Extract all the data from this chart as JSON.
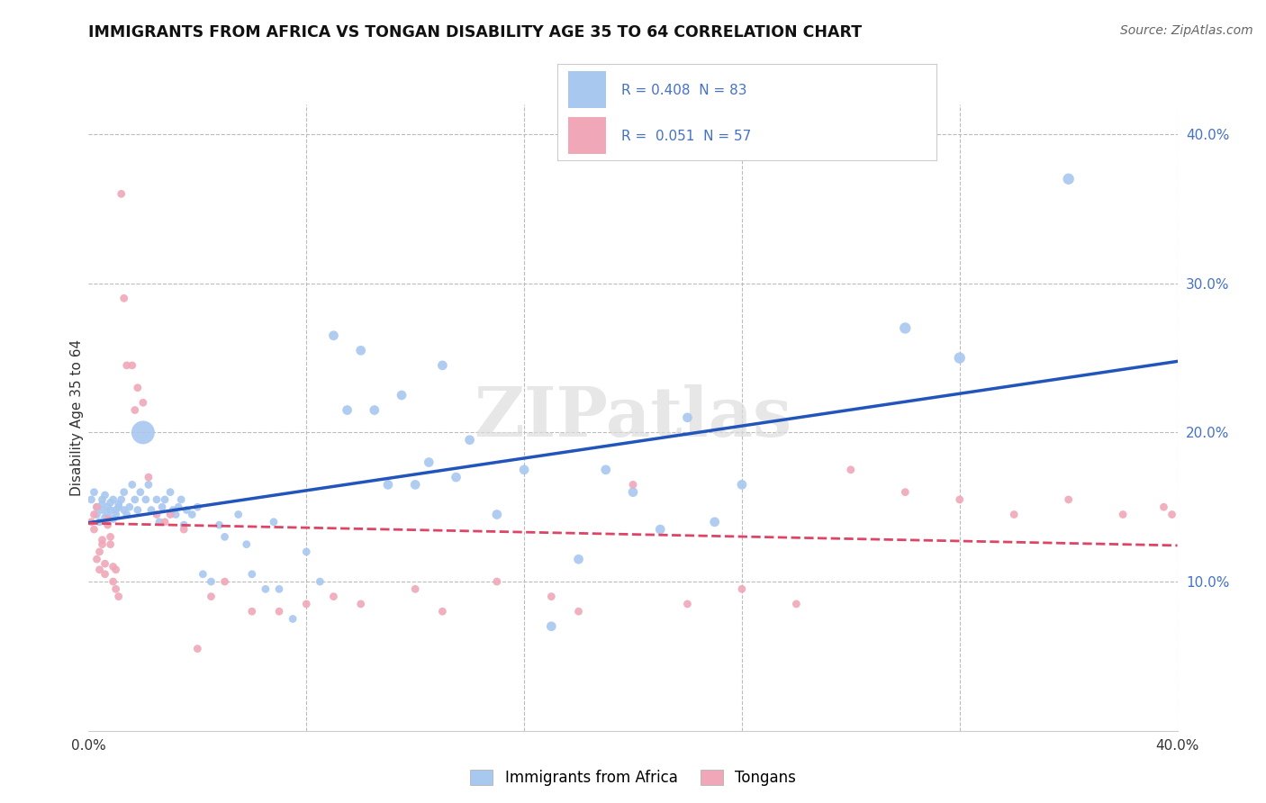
{
  "title": "IMMIGRANTS FROM AFRICA VS TONGAN DISABILITY AGE 35 TO 64 CORRELATION CHART",
  "source": "Source: ZipAtlas.com",
  "ylabel": "Disability Age 35 to 64",
  "xlim": [
    0.0,
    0.4
  ],
  "ylim": [
    0.0,
    0.42
  ],
  "legend1_R": "0.408",
  "legend1_N": "83",
  "legend2_R": "0.051",
  "legend2_N": "57",
  "color_africa": "#a8c8f0",
  "color_tonga": "#f0a8b8",
  "line_africa": "#2255bb",
  "line_tonga": "#dd4466",
  "watermark": "ZIPatlas",
  "africa_x": [
    0.001,
    0.002,
    0.003,
    0.003,
    0.004,
    0.005,
    0.005,
    0.005,
    0.006,
    0.006,
    0.007,
    0.007,
    0.008,
    0.008,
    0.009,
    0.009,
    0.01,
    0.01,
    0.011,
    0.011,
    0.012,
    0.013,
    0.013,
    0.014,
    0.015,
    0.016,
    0.017,
    0.018,
    0.019,
    0.02,
    0.021,
    0.022,
    0.023,
    0.025,
    0.026,
    0.027,
    0.028,
    0.03,
    0.031,
    0.032,
    0.033,
    0.034,
    0.035,
    0.036,
    0.038,
    0.04,
    0.042,
    0.045,
    0.048,
    0.05,
    0.055,
    0.058,
    0.06,
    0.065,
    0.068,
    0.07,
    0.075,
    0.08,
    0.085,
    0.09,
    0.095,
    0.1,
    0.105,
    0.11,
    0.115,
    0.12,
    0.125,
    0.13,
    0.135,
    0.14,
    0.15,
    0.16,
    0.17,
    0.18,
    0.19,
    0.2,
    0.21,
    0.22,
    0.23,
    0.24,
    0.3,
    0.32,
    0.36
  ],
  "africa_y": [
    0.155,
    0.16,
    0.145,
    0.15,
    0.14,
    0.155,
    0.148,
    0.152,
    0.143,
    0.158,
    0.145,
    0.15,
    0.148,
    0.153,
    0.142,
    0.155,
    0.148,
    0.145,
    0.15,
    0.152,
    0.155,
    0.148,
    0.16,
    0.145,
    0.15,
    0.165,
    0.155,
    0.148,
    0.16,
    0.2,
    0.155,
    0.165,
    0.148,
    0.155,
    0.14,
    0.15,
    0.155,
    0.16,
    0.148,
    0.145,
    0.15,
    0.155,
    0.138,
    0.148,
    0.145,
    0.15,
    0.105,
    0.1,
    0.138,
    0.13,
    0.145,
    0.125,
    0.105,
    0.095,
    0.14,
    0.095,
    0.075,
    0.12,
    0.1,
    0.265,
    0.215,
    0.255,
    0.215,
    0.165,
    0.225,
    0.165,
    0.18,
    0.245,
    0.17,
    0.195,
    0.145,
    0.175,
    0.07,
    0.115,
    0.175,
    0.16,
    0.135,
    0.21,
    0.14,
    0.165,
    0.27,
    0.25,
    0.37
  ],
  "africa_sizes": [
    40,
    40,
    40,
    40,
    40,
    40,
    40,
    40,
    40,
    40,
    40,
    40,
    40,
    40,
    40,
    40,
    40,
    40,
    40,
    40,
    40,
    40,
    40,
    40,
    40,
    40,
    40,
    40,
    40,
    350,
    40,
    40,
    40,
    40,
    40,
    40,
    40,
    40,
    40,
    40,
    40,
    40,
    40,
    40,
    40,
    40,
    40,
    40,
    40,
    40,
    40,
    40,
    40,
    40,
    40,
    40,
    40,
    40,
    40,
    60,
    60,
    60,
    60,
    60,
    60,
    60,
    60,
    60,
    60,
    60,
    60,
    60,
    60,
    60,
    60,
    60,
    60,
    60,
    60,
    60,
    80,
    80,
    80
  ],
  "tonga_x": [
    0.001,
    0.002,
    0.002,
    0.003,
    0.003,
    0.004,
    0.004,
    0.005,
    0.005,
    0.006,
    0.006,
    0.007,
    0.007,
    0.008,
    0.008,
    0.009,
    0.009,
    0.01,
    0.01,
    0.011,
    0.012,
    0.013,
    0.014,
    0.016,
    0.017,
    0.018,
    0.02,
    0.022,
    0.025,
    0.028,
    0.03,
    0.035,
    0.04,
    0.045,
    0.05,
    0.06,
    0.07,
    0.08,
    0.09,
    0.1,
    0.12,
    0.13,
    0.15,
    0.17,
    0.18,
    0.2,
    0.22,
    0.24,
    0.26,
    0.28,
    0.3,
    0.32,
    0.34,
    0.36,
    0.38,
    0.395,
    0.398
  ],
  "tonga_y": [
    0.14,
    0.135,
    0.145,
    0.15,
    0.115,
    0.108,
    0.12,
    0.125,
    0.128,
    0.112,
    0.105,
    0.142,
    0.138,
    0.13,
    0.125,
    0.1,
    0.11,
    0.108,
    0.095,
    0.09,
    0.36,
    0.29,
    0.245,
    0.245,
    0.215,
    0.23,
    0.22,
    0.17,
    0.145,
    0.14,
    0.145,
    0.135,
    0.055,
    0.09,
    0.1,
    0.08,
    0.08,
    0.085,
    0.09,
    0.085,
    0.095,
    0.08,
    0.1,
    0.09,
    0.08,
    0.165,
    0.085,
    0.095,
    0.085,
    0.175,
    0.16,
    0.155,
    0.145,
    0.155,
    0.145,
    0.15,
    0.145
  ],
  "tonga_sizes": [
    40,
    40,
    40,
    40,
    40,
    40,
    40,
    40,
    40,
    40,
    40,
    40,
    40,
    40,
    40,
    40,
    40,
    40,
    40,
    40,
    40,
    40,
    40,
    40,
    40,
    40,
    40,
    40,
    40,
    40,
    40,
    40,
    40,
    40,
    40,
    40,
    40,
    40,
    40,
    40,
    40,
    40,
    40,
    40,
    40,
    40,
    40,
    40,
    40,
    40,
    40,
    40,
    40,
    40,
    40,
    40,
    40
  ]
}
